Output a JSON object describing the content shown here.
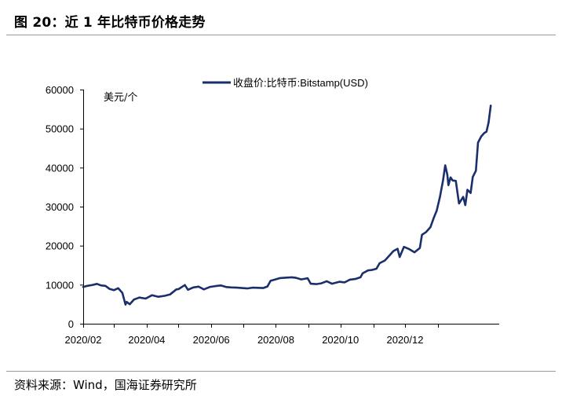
{
  "header": {
    "title": "图 20：近 1 年比特币价格走势"
  },
  "footer": {
    "source": "资料来源：Wind，国海证券研究所"
  },
  "colors": {
    "line": "#1a2f6b",
    "axis": "#000000",
    "rule": "#9a9a9a"
  },
  "chart_data": {
    "type": "line",
    "title": "",
    "xlabel": "",
    "ylabel": "美元/个",
    "ylim": [
      0,
      60000
    ],
    "yticks": [
      0,
      10000,
      20000,
      30000,
      40000,
      50000,
      60000
    ],
    "xticks": [
      "2020/02",
      "2020/04",
      "2020/06",
      "2020/08",
      "2020/10",
      "2020/12"
    ],
    "xrange": [
      "2020-02-01",
      "2021-02-28"
    ],
    "legend": {
      "position": "top-center"
    },
    "series": [
      {
        "name": "收盘价:比特币:Bitstamp(USD)",
        "points": [
          [
            "2020-02-01",
            9400
          ],
          [
            "2020-02-05",
            9700
          ],
          [
            "2020-02-10",
            9950
          ],
          [
            "2020-02-14",
            10200
          ],
          [
            "2020-02-18",
            9800
          ],
          [
            "2020-02-22",
            9700
          ],
          [
            "2020-02-26",
            8900
          ],
          [
            "2020-03-01",
            8600
          ],
          [
            "2020-03-05",
            9100
          ],
          [
            "2020-03-09",
            7900
          ],
          [
            "2020-03-12",
            4900
          ],
          [
            "2020-03-13",
            5600
          ],
          [
            "2020-03-16",
            5000
          ],
          [
            "2020-03-20",
            6200
          ],
          [
            "2020-03-25",
            6700
          ],
          [
            "2020-03-31",
            6450
          ],
          [
            "2020-04-06",
            7300
          ],
          [
            "2020-04-12",
            6900
          ],
          [
            "2020-04-18",
            7150
          ],
          [
            "2020-04-23",
            7500
          ],
          [
            "2020-04-29",
            8800
          ],
          [
            "2020-05-01",
            8850
          ],
          [
            "2020-05-07",
            9900
          ],
          [
            "2020-05-10",
            8700
          ],
          [
            "2020-05-15",
            9300
          ],
          [
            "2020-05-20",
            9500
          ],
          [
            "2020-05-25",
            8800
          ],
          [
            "2020-05-31",
            9450
          ],
          [
            "2020-06-05",
            9650
          ],
          [
            "2020-06-10",
            9800
          ],
          [
            "2020-06-15",
            9400
          ],
          [
            "2020-06-20",
            9300
          ],
          [
            "2020-06-25",
            9250
          ],
          [
            "2020-06-30",
            9150
          ],
          [
            "2020-07-05",
            9050
          ],
          [
            "2020-07-10",
            9250
          ],
          [
            "2020-07-15",
            9200
          ],
          [
            "2020-07-20",
            9150
          ],
          [
            "2020-07-24",
            9550
          ],
          [
            "2020-07-27",
            11000
          ],
          [
            "2020-07-31",
            11300
          ],
          [
            "2020-08-05",
            11700
          ],
          [
            "2020-08-10",
            11800
          ],
          [
            "2020-08-16",
            11900
          ],
          [
            "2020-08-20",
            11750
          ],
          [
            "2020-08-25",
            11350
          ],
          [
            "2020-08-31",
            11650
          ],
          [
            "2020-09-03",
            10250
          ],
          [
            "2020-09-08",
            10150
          ],
          [
            "2020-09-13",
            10350
          ],
          [
            "2020-09-18",
            10900
          ],
          [
            "2020-09-23",
            10250
          ],
          [
            "2020-09-30",
            10750
          ],
          [
            "2020-10-05",
            10600
          ],
          [
            "2020-10-10",
            11300
          ],
          [
            "2020-10-15",
            11450
          ],
          [
            "2020-10-20",
            11900
          ],
          [
            "2020-10-22",
            12900
          ],
          [
            "2020-10-27",
            13650
          ],
          [
            "2020-10-31",
            13800
          ],
          [
            "2020-11-04",
            14100
          ],
          [
            "2020-11-07",
            15500
          ],
          [
            "2020-11-12",
            16200
          ],
          [
            "2020-11-17",
            17700
          ],
          [
            "2020-11-20",
            18600
          ],
          [
            "2020-11-24",
            19200
          ],
          [
            "2020-11-26",
            17100
          ],
          [
            "2020-11-30",
            19700
          ],
          [
            "2020-12-05",
            19100
          ],
          [
            "2020-12-10",
            18300
          ],
          [
            "2020-12-15",
            19400
          ],
          [
            "2020-12-17",
            22800
          ],
          [
            "2020-12-21",
            23500
          ],
          [
            "2020-12-25",
            24700
          ],
          [
            "2020-12-28",
            27000
          ],
          [
            "2020-12-31",
            29000
          ],
          [
            "2021-01-03",
            32500
          ],
          [
            "2021-01-06",
            36800
          ],
          [
            "2021-01-08",
            40600
          ],
          [
            "2021-01-10",
            38200
          ],
          [
            "2021-01-11",
            35500
          ],
          [
            "2021-01-13",
            37500
          ],
          [
            "2021-01-15",
            36700
          ],
          [
            "2021-01-18",
            36600
          ],
          [
            "2021-01-21",
            30800
          ],
          [
            "2021-01-25",
            32500
          ],
          [
            "2021-01-27",
            30400
          ],
          [
            "2021-01-29",
            34300
          ],
          [
            "2021-02-01",
            33500
          ],
          [
            "2021-02-03",
            37600
          ],
          [
            "2021-02-06",
            39200
          ],
          [
            "2021-02-08",
            46400
          ],
          [
            "2021-02-11",
            48000
          ],
          [
            "2021-02-14",
            48900
          ],
          [
            "2021-02-16",
            49200
          ],
          [
            "2021-02-18",
            51600
          ],
          [
            "2021-02-20",
            55900
          ]
        ]
      }
    ]
  }
}
